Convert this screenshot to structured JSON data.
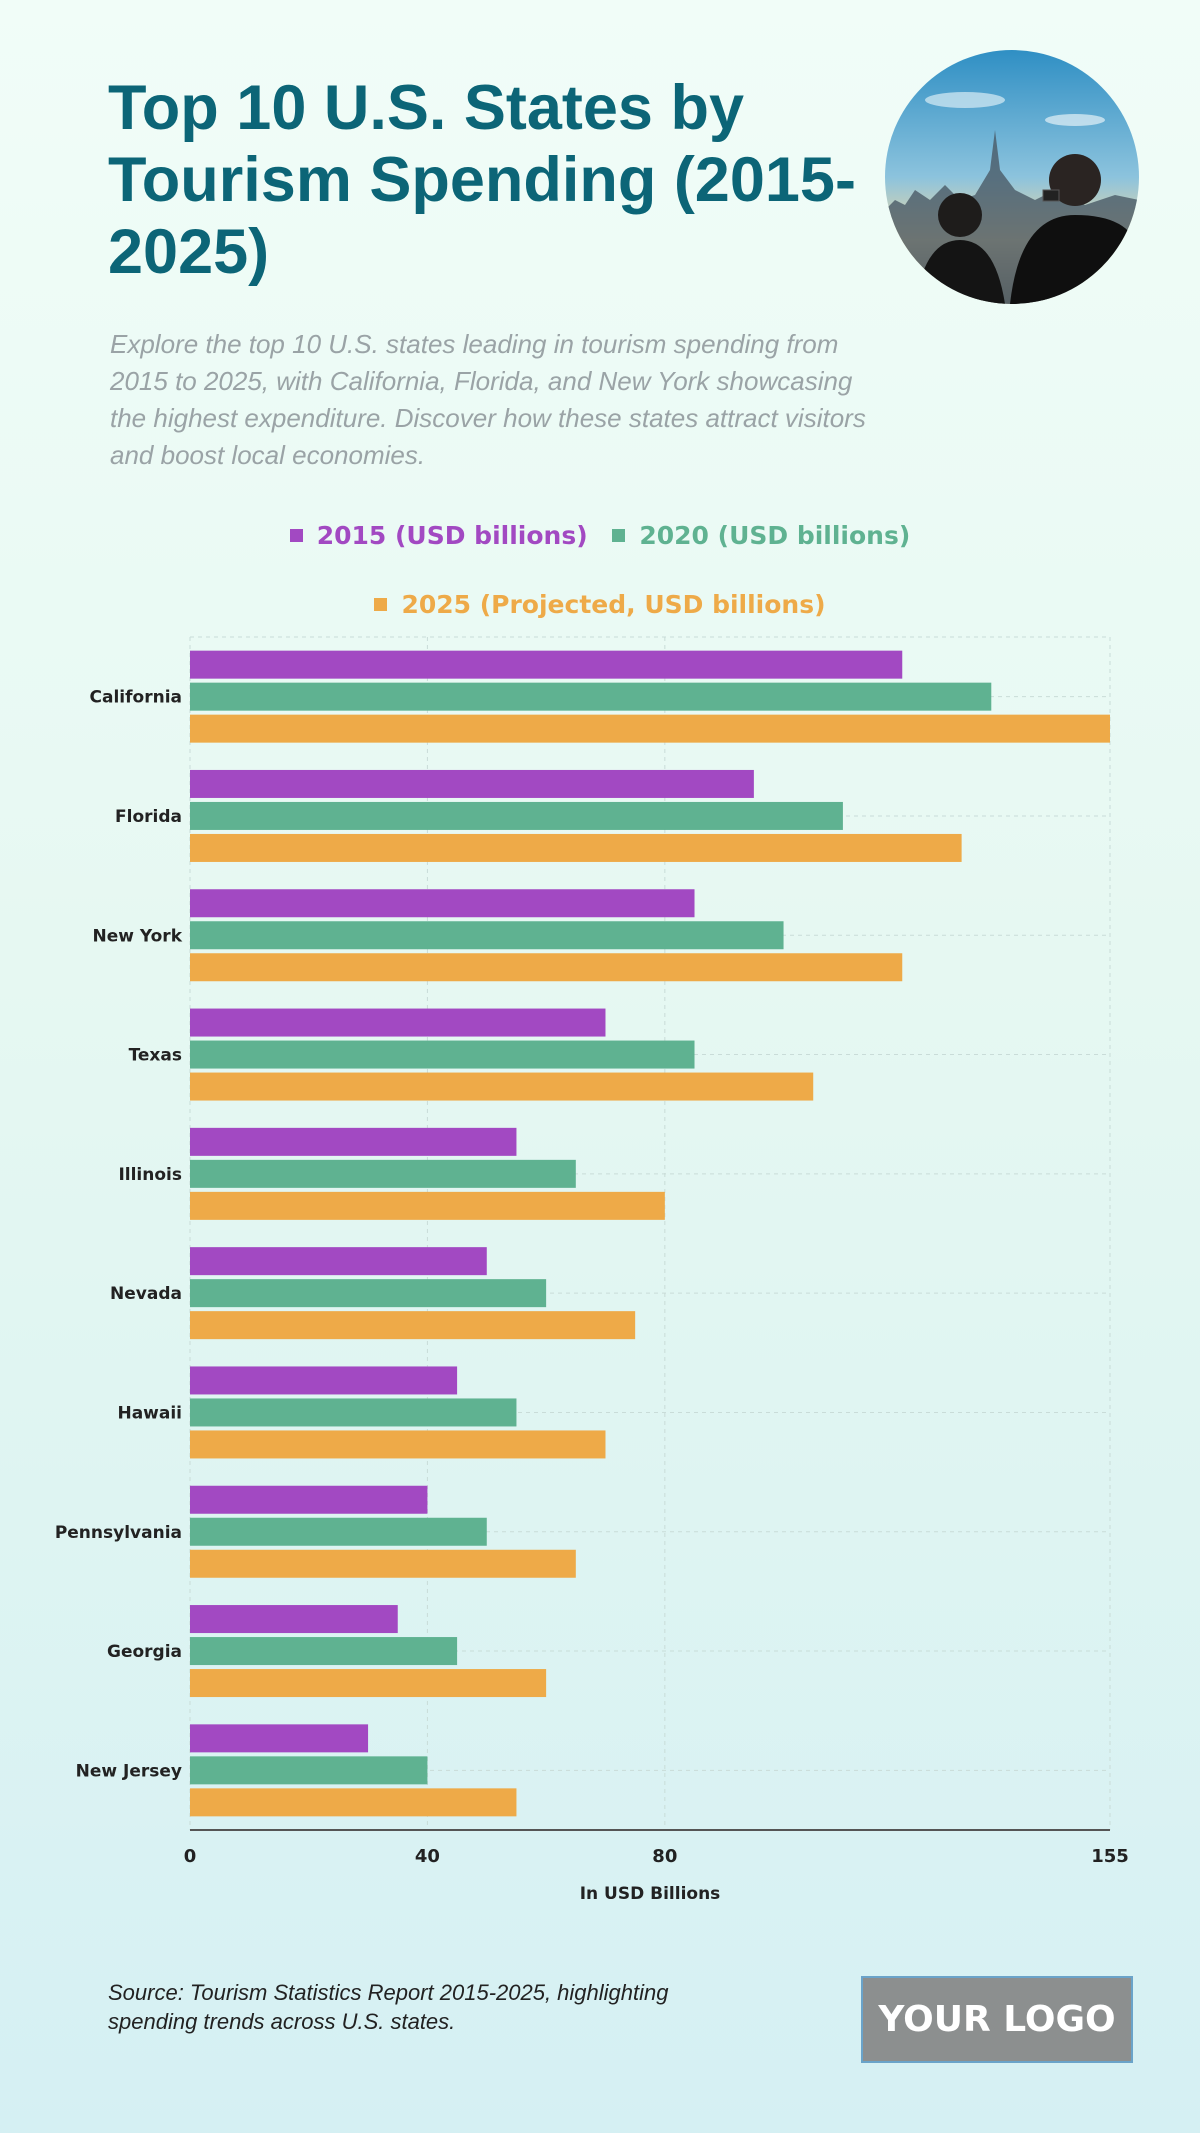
{
  "header": {
    "title": "Top 10 U.S. States by Tourism Spending (2015-2025)",
    "subtitle": "Explore the top 10 U.S. states leading in tourism spending from 2015 to 2025, with California, Florida, and New York showcasing the highest expenditure. Discover how these states attract visitors and boost local economies."
  },
  "chart_data": {
    "type": "bar",
    "orientation": "horizontal",
    "categories": [
      "California",
      "Florida",
      "New York",
      "Texas",
      "Illinois",
      "Nevada",
      "Hawaii",
      "Pennsylvania",
      "Georgia",
      "New Jersey"
    ],
    "series": [
      {
        "name": "2015 (USD billions)",
        "color": "#a249c2",
        "values": [
          120,
          95,
          85,
          70,
          55,
          50,
          45,
          40,
          35,
          30
        ]
      },
      {
        "name": "2020 (USD billions)",
        "color": "#5fb291",
        "values": [
          135,
          110,
          100,
          85,
          65,
          60,
          55,
          50,
          45,
          40
        ]
      },
      {
        "name": "2025 (Projected, USD billions)",
        "color": "#eeaa48",
        "values": [
          155,
          130,
          120,
          105,
          80,
          75,
          70,
          65,
          60,
          55
        ]
      }
    ],
    "xlabel": "In USD Billions",
    "xlim": [
      0,
      155
    ],
    "xticks": [
      0,
      40,
      80,
      155
    ],
    "grid": true,
    "legend_placement": "top"
  },
  "footer": {
    "source": "Source: Tourism Statistics Report 2015-2025, highlighting spending trends across U.S. states.",
    "logo": "YOUR LOGO"
  }
}
